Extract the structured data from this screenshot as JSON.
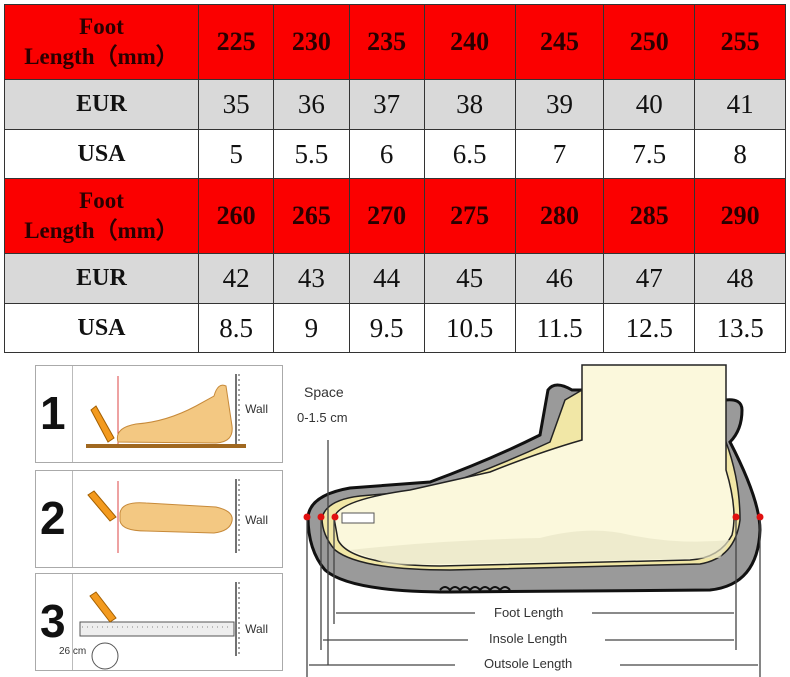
{
  "size_table": {
    "row_label_foot": "Foot Length（mm）",
    "row_label_foot_line1": "Foot",
    "row_label_foot_line2": "Length（mm）",
    "row_label_eur": "EUR",
    "row_label_usa": "USA",
    "blocks": [
      {
        "foot": [
          "225",
          "230",
          "235",
          "240",
          "245",
          "250",
          "255"
        ],
        "eur": [
          "35",
          "36",
          "37",
          "38",
          "39",
          "40",
          "41"
        ],
        "usa": [
          "5",
          "5.5",
          "6",
          "6.5",
          "7",
          "7.5",
          "8"
        ]
      },
      {
        "foot": [
          "260",
          "265",
          "270",
          "275",
          "280",
          "285",
          "290"
        ],
        "eur": [
          "42",
          "43",
          "44",
          "45",
          "46",
          "47",
          "48"
        ],
        "usa": [
          "8.5",
          "9",
          "9.5",
          "10.5",
          "11.5",
          "12.5",
          "13.5"
        ]
      }
    ],
    "colors": {
      "header": "#fb0000",
      "eur_row": "#d9d9d9",
      "usa_row": "#ffffff"
    }
  },
  "steps": [
    {
      "number": "1",
      "wall": "Wall"
    },
    {
      "number": "2",
      "wall": "Wall"
    },
    {
      "number": "3",
      "wall": "Wall",
      "ruler_reading": "26 cm"
    }
  ],
  "diagram": {
    "space_label": "Space",
    "space_value": "0-1.5 cm",
    "foot_length": "Foot Length",
    "insole_length": "Insole Length",
    "outsole_length": "Outsole Length"
  }
}
